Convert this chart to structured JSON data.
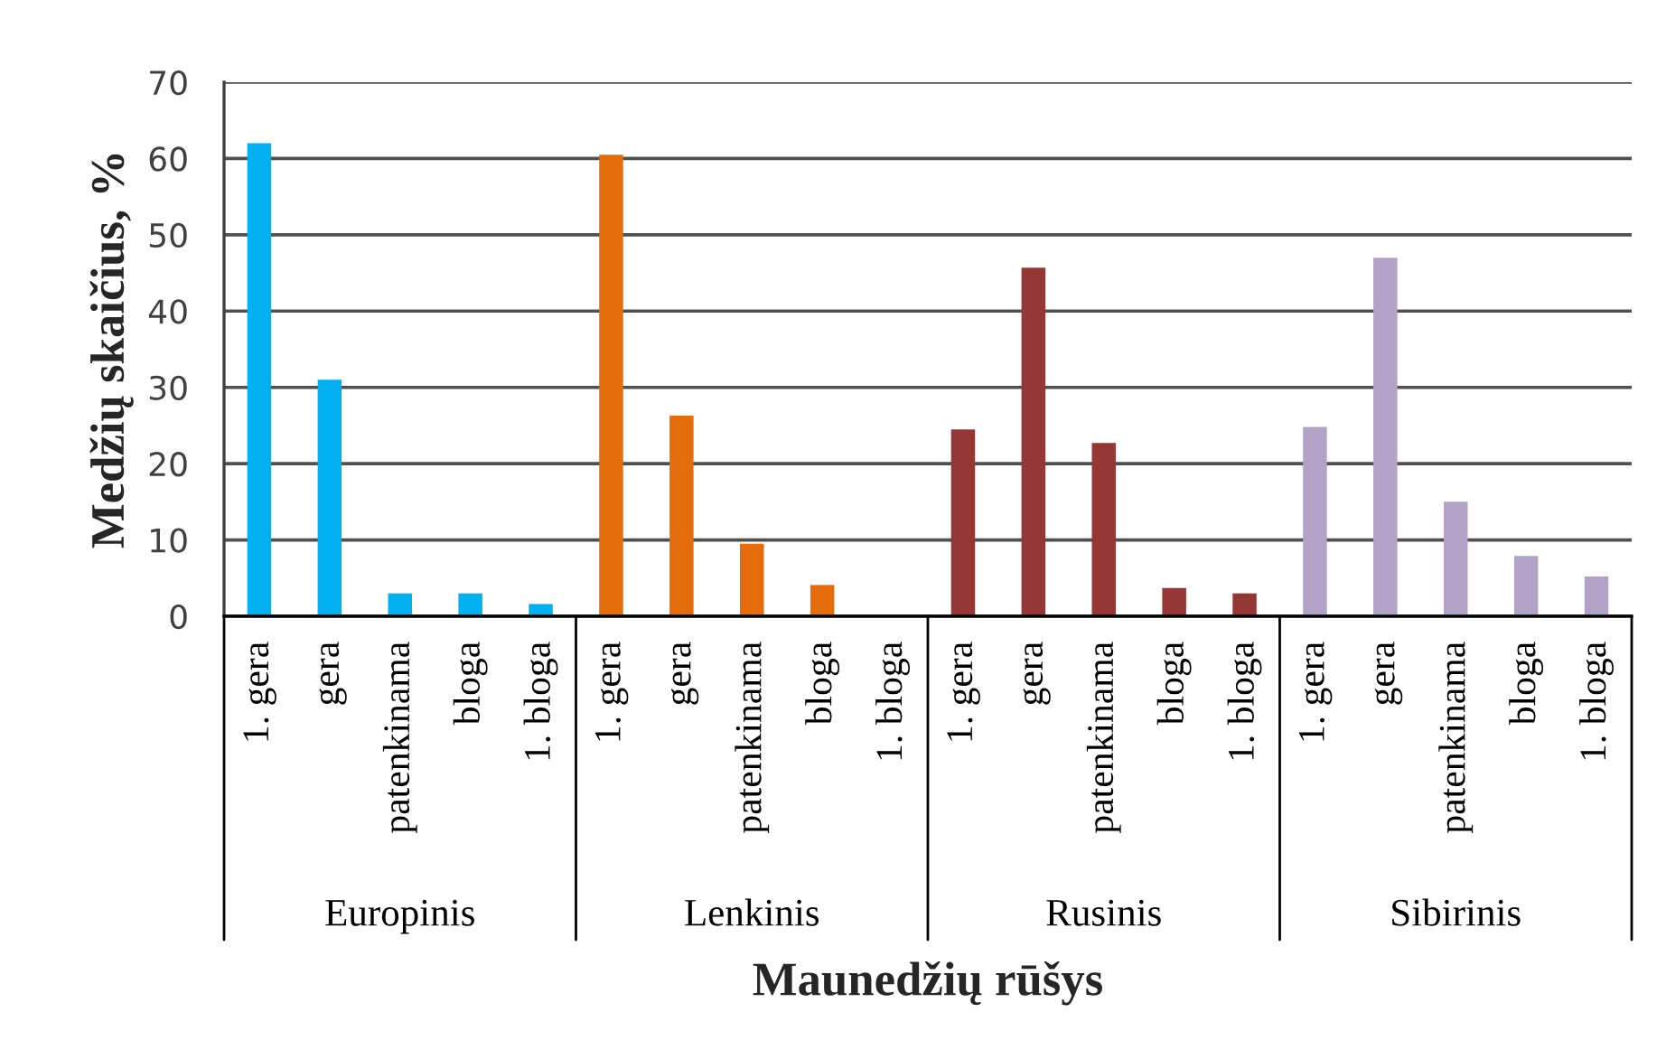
{
  "chart_data": {
    "type": "bar",
    "xlabel": "Maunedžių rūšys",
    "ylabel": "Medžių skaičius, %",
    "categories": [
      "1. gera",
      "gera",
      "patenkinama",
      "bloga",
      "1. bloga",
      "1. gera",
      "gera",
      "patenkinama",
      "bloga",
      "1. bloga",
      "1. gera",
      "gera",
      "patenkinama",
      "bloga",
      "1. bloga",
      "1. gera",
      "gera",
      "patenkinama",
      "bloga",
      "1. bloga"
    ],
    "values": [
      62,
      31,
      3,
      3,
      1.6,
      60.5,
      26.3,
      9.5,
      4.1,
      0,
      24.5,
      45.7,
      22.7,
      3.7,
      3.0,
      24.8,
      47,
      15,
      7.9,
      5.2
    ],
    "colors": [
      "#00b0f0",
      "#00b0f0",
      "#00b0f0",
      "#00b0f0",
      "#00b0f0",
      "#e46c0a",
      "#e46c0a",
      "#e46c0a",
      "#e46c0a",
      "#e46c0a",
      "#953735",
      "#953735",
      "#953735",
      "#953735",
      "#953735",
      "#b3a2c7",
      "#b3a2c7",
      "#b3a2c7",
      "#b3a2c7",
      "#b3a2c7"
    ],
    "annotations": [
      "Europinis",
      "Lenkinis",
      "Rusinis",
      "Sibirinis"
    ],
    "ylim": [
      0,
      70
    ],
    "yticks": [
      0,
      10,
      20,
      30,
      40,
      50,
      60,
      70
    ],
    "grid": "y"
  }
}
